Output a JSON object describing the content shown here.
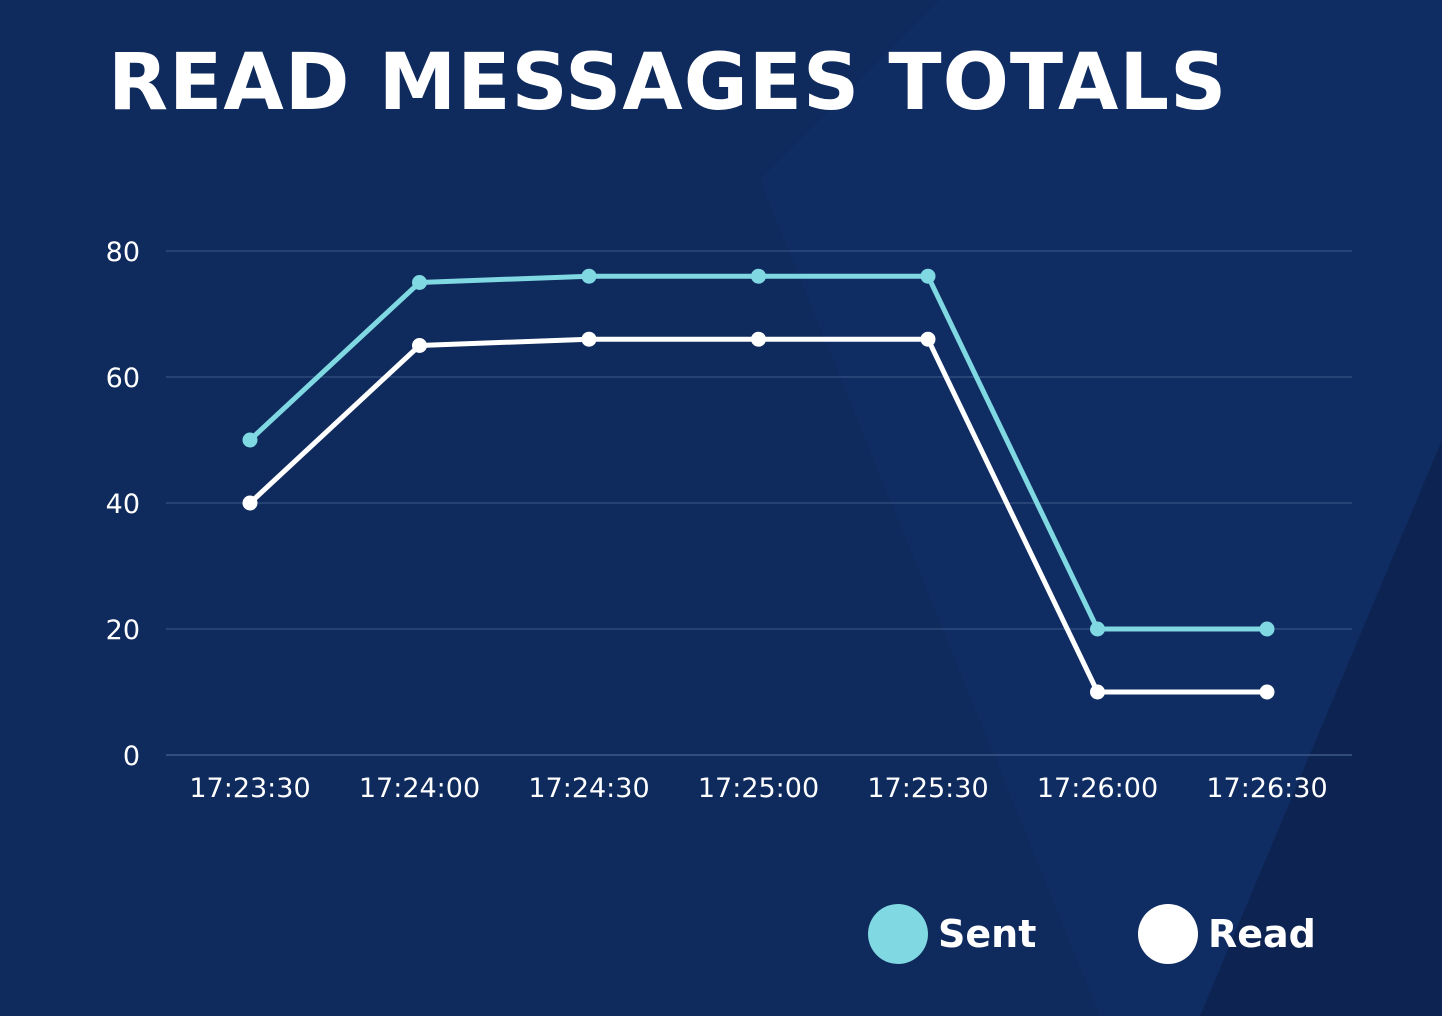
{
  "title": "READ MESSAGES TOTALS",
  "colors": {
    "background": "#0f2a5c",
    "background_shade": "#0d2552",
    "grid": "#3b5a8a",
    "sent": "#7fd8e2",
    "read": "#ffffff",
    "text": "#ffffff"
  },
  "chart_data": {
    "type": "line",
    "x": [
      "17:23:30",
      "17:24:00",
      "17:24:30",
      "17:25:00",
      "17:25:30",
      "17:26:00",
      "17:26:30"
    ],
    "series": [
      {
        "name": "Sent",
        "values": [
          50,
          75,
          76,
          76,
          76,
          20,
          20
        ],
        "color": "#7fd8e2"
      },
      {
        "name": "Read",
        "values": [
          40,
          65,
          66,
          66,
          66,
          10,
          10
        ],
        "color": "#ffffff"
      }
    ],
    "yticks": [
      0,
      20,
      40,
      60,
      80
    ],
    "ylim": [
      0,
      80
    ],
    "grid": true,
    "legend_position": "bottom-right"
  },
  "legend": {
    "sent_label": "Sent",
    "read_label": "Read"
  }
}
